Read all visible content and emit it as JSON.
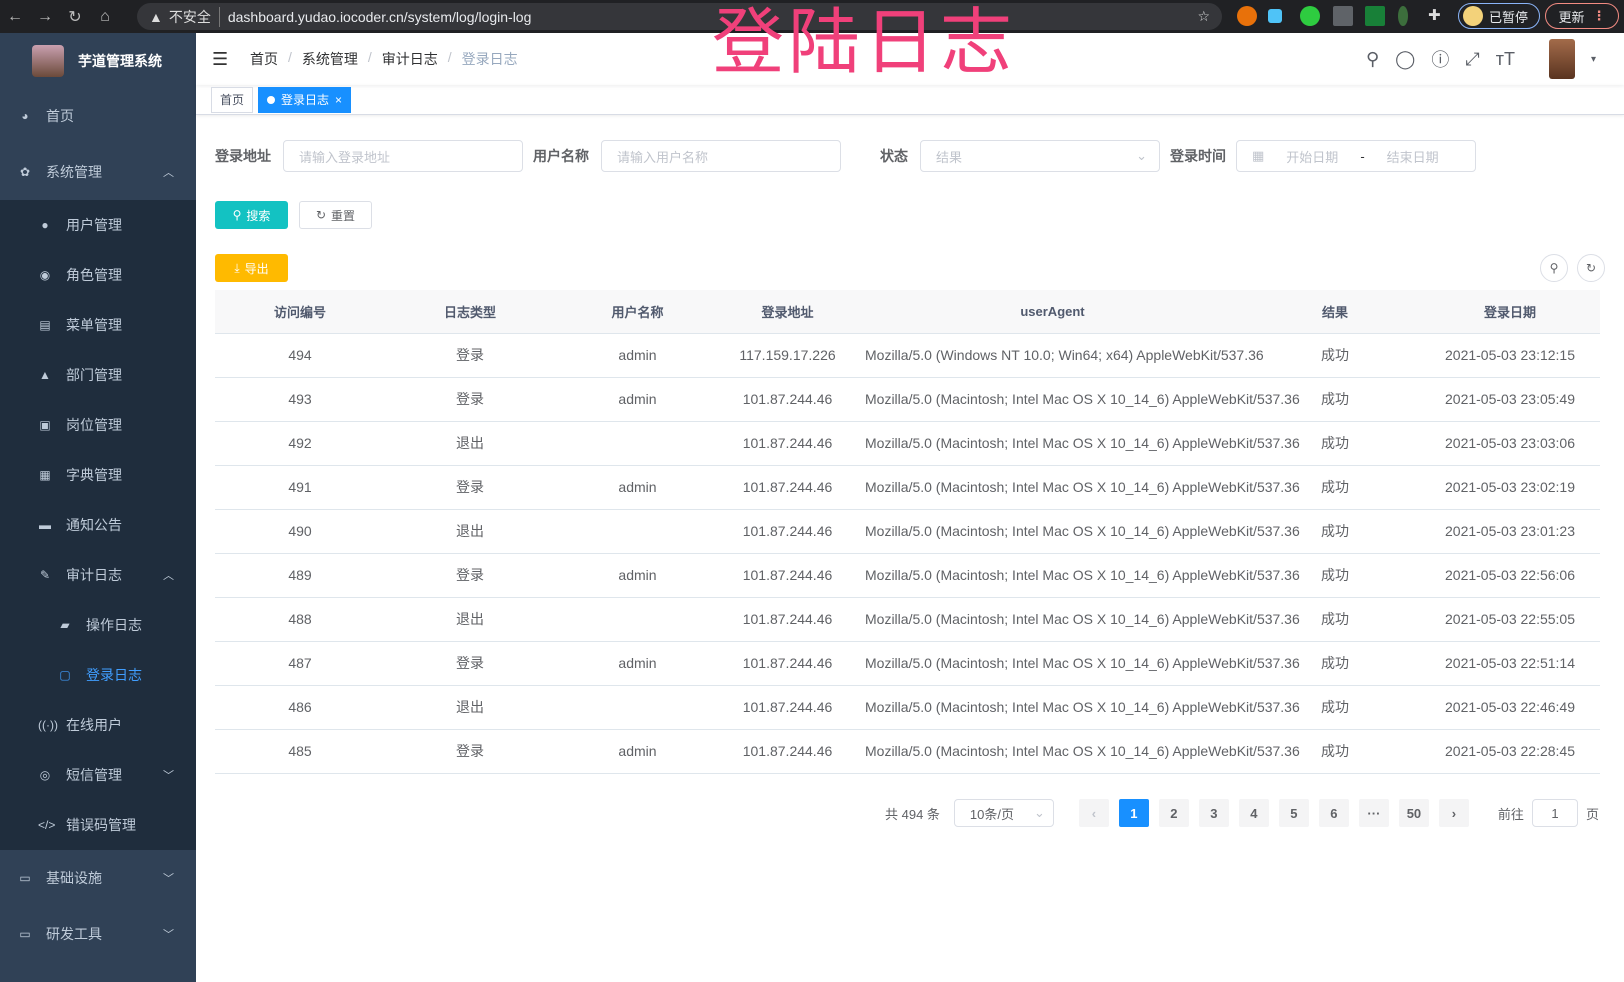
{
  "browser": {
    "insecure": "不安全",
    "url": "dashboard.yudao.iocoder.cn/system/log/login-log",
    "paused": "已暂停",
    "update": "更新"
  },
  "overlay_title": "登陆日志",
  "sidebar": {
    "app_title": "芋道管理系统",
    "items": [
      {
        "label": "首页",
        "icon": "dashboard-icon"
      },
      {
        "label": "系统管理",
        "icon": "gear-icon",
        "expanded": true,
        "children": [
          {
            "label": "用户管理"
          },
          {
            "label": "角色管理"
          },
          {
            "label": "菜单管理"
          },
          {
            "label": "部门管理"
          },
          {
            "label": "岗位管理"
          },
          {
            "label": "字典管理"
          },
          {
            "label": "通知公告"
          },
          {
            "label": "审计日志",
            "expanded": true,
            "children": [
              {
                "label": "操作日志"
              },
              {
                "label": "登录日志",
                "active": true
              }
            ]
          },
          {
            "label": "在线用户"
          },
          {
            "label": "短信管理"
          },
          {
            "label": "错误码管理"
          }
        ]
      },
      {
        "label": "基础设施"
      },
      {
        "label": "研发工具"
      }
    ]
  },
  "breadcrumb": [
    "首页",
    "系统管理",
    "审计日志",
    "登录日志"
  ],
  "tags": [
    {
      "label": "首页"
    },
    {
      "label": "登录日志",
      "active": true
    }
  ],
  "filters": {
    "ip": {
      "label": "登录地址",
      "placeholder": "请输入登录地址"
    },
    "username": {
      "label": "用户名称",
      "placeholder": "请输入用户名称"
    },
    "status": {
      "label": "状态",
      "placeholder": "结果"
    },
    "time": {
      "label": "登录时间",
      "start": "开始日期",
      "sep": "-",
      "end": "结束日期"
    },
    "search": "搜索",
    "reset": "重置",
    "export": "导出"
  },
  "colors": {
    "primary": "#1890ff",
    "search": "#13c2c2",
    "export": "#ffba00",
    "sidebar": "#304156"
  },
  "table": {
    "columns": [
      "访问编号",
      "日志类型",
      "用户名称",
      "登录地址",
      "userAgent",
      "结果",
      "登录日期"
    ],
    "rows": [
      [
        "494",
        "登录",
        "admin",
        "117.159.17.226",
        "Mozilla/5.0 (Windows NT 10.0; Win64; x64) AppleWebKit/537.36",
        "成功",
        "2021-05-03 23:12:15"
      ],
      [
        "493",
        "登录",
        "admin",
        "101.87.244.46",
        "Mozilla/5.0 (Macintosh; Intel Mac OS X 10_14_6) AppleWebKit/537.36",
        "成功",
        "2021-05-03 23:05:49"
      ],
      [
        "492",
        "退出",
        "",
        "101.87.244.46",
        "Mozilla/5.0 (Macintosh; Intel Mac OS X 10_14_6) AppleWebKit/537.36",
        "成功",
        "2021-05-03 23:03:06"
      ],
      [
        "491",
        "登录",
        "admin",
        "101.87.244.46",
        "Mozilla/5.0 (Macintosh; Intel Mac OS X 10_14_6) AppleWebKit/537.36",
        "成功",
        "2021-05-03 23:02:19"
      ],
      [
        "490",
        "退出",
        "",
        "101.87.244.46",
        "Mozilla/5.0 (Macintosh; Intel Mac OS X 10_14_6) AppleWebKit/537.36",
        "成功",
        "2021-05-03 23:01:23"
      ],
      [
        "489",
        "登录",
        "admin",
        "101.87.244.46",
        "Mozilla/5.0 (Macintosh; Intel Mac OS X 10_14_6) AppleWebKit/537.36",
        "成功",
        "2021-05-03 22:56:06"
      ],
      [
        "488",
        "退出",
        "",
        "101.87.244.46",
        "Mozilla/5.0 (Macintosh; Intel Mac OS X 10_14_6) AppleWebKit/537.36",
        "成功",
        "2021-05-03 22:55:05"
      ],
      [
        "487",
        "登录",
        "admin",
        "101.87.244.46",
        "Mozilla/5.0 (Macintosh; Intel Mac OS X 10_14_6) AppleWebKit/537.36",
        "成功",
        "2021-05-03 22:51:14"
      ],
      [
        "486",
        "退出",
        "",
        "101.87.244.46",
        "Mozilla/5.0 (Macintosh; Intel Mac OS X 10_14_6) AppleWebKit/537.36",
        "成功",
        "2021-05-03 22:46:49"
      ],
      [
        "485",
        "登录",
        "admin",
        "101.87.244.46",
        "Mozilla/5.0 (Macintosh; Intel Mac OS X 10_14_6) AppleWebKit/537.36",
        "成功",
        "2021-05-03 22:28:45"
      ]
    ]
  },
  "pagination": {
    "total": "共 494 条",
    "page_size": "10条/页",
    "prev": "‹",
    "next": "›",
    "pages": [
      "1",
      "2",
      "3",
      "4",
      "5",
      "6",
      "···",
      "50"
    ],
    "current": "1",
    "goto_label": "前往",
    "goto_value": "1",
    "goto_suffix": "页"
  }
}
